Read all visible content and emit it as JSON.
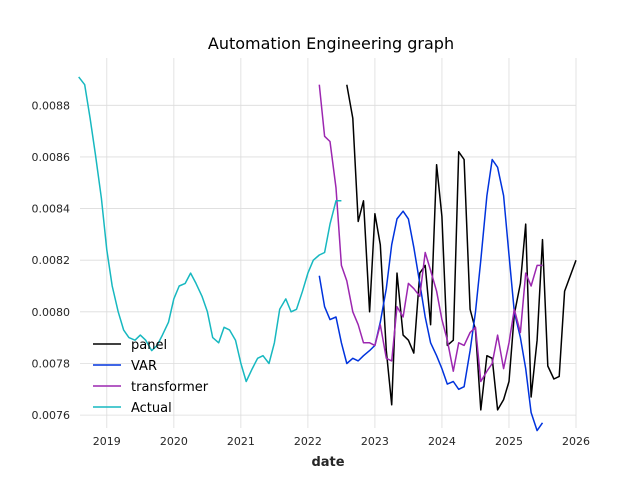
{
  "chart_data": {
    "type": "line",
    "title": "Automation Engineering graph",
    "xlabel": "date",
    "ylabel": "",
    "xlim": [
      2018.6,
      2026.0
    ],
    "ylim": [
      0.00755,
      0.0089833
    ],
    "x_ticks": [
      2019,
      2020,
      2021,
      2022,
      2023,
      2024,
      2025,
      2026
    ],
    "x_tick_labels": [
      "2019",
      "2020",
      "2021",
      "2022",
      "2023",
      "2024",
      "2025",
      "2026"
    ],
    "y_ticks": [
      0.0076,
      0.0078,
      0.008,
      0.0082,
      0.0084,
      0.0086,
      0.0088
    ],
    "y_tick_labels": [
      "0.0076",
      "0.0078",
      "0.0080",
      "0.0082",
      "0.0084",
      "0.0086",
      "0.0088"
    ],
    "grid": true,
    "legend_position": "lower-left",
    "series": [
      {
        "name": "panel",
        "color": "#000000",
        "points": [
          [
            2022.58,
            0.00888
          ],
          [
            2022.67,
            0.00875
          ],
          [
            2022.75,
            0.00835
          ],
          [
            2022.83,
            0.00843
          ],
          [
            2022.92,
            0.008
          ],
          [
            2023.0,
            0.00838
          ],
          [
            2023.08,
            0.00826
          ],
          [
            2023.17,
            0.00785
          ],
          [
            2023.25,
            0.00764
          ],
          [
            2023.33,
            0.00815
          ],
          [
            2023.42,
            0.00791
          ],
          [
            2023.5,
            0.00789
          ],
          [
            2023.58,
            0.00784
          ],
          [
            2023.67,
            0.00815
          ],
          [
            2023.75,
            0.00818
          ],
          [
            2023.83,
            0.00795
          ],
          [
            2023.92,
            0.00857
          ],
          [
            2024.0,
            0.00837
          ],
          [
            2024.08,
            0.00787
          ],
          [
            2024.17,
            0.00789
          ],
          [
            2024.25,
            0.00862
          ],
          [
            2024.33,
            0.00859
          ],
          [
            2024.42,
            0.00801
          ],
          [
            2024.5,
            0.00793
          ],
          [
            2024.58,
            0.00762
          ],
          [
            2024.67,
            0.00783
          ],
          [
            2024.75,
            0.00782
          ],
          [
            2024.83,
            0.00762
          ],
          [
            2024.92,
            0.00766
          ],
          [
            2025.0,
            0.00773
          ],
          [
            2025.08,
            0.00799
          ],
          [
            2025.17,
            0.00811
          ],
          [
            2025.25,
            0.00834
          ],
          [
            2025.33,
            0.00767
          ],
          [
            2025.42,
            0.00789
          ],
          [
            2025.5,
            0.00828
          ],
          [
            2025.58,
            0.00779
          ],
          [
            2025.67,
            0.00774
          ],
          [
            2025.75,
            0.00775
          ],
          [
            2025.83,
            0.00808
          ],
          [
            2026.0,
            0.0082
          ]
        ]
      },
      {
        "name": "VAR",
        "color": "#0033dd",
        "points": [
          [
            2022.17,
            0.00814
          ],
          [
            2022.25,
            0.00802
          ],
          [
            2022.33,
            0.00797
          ],
          [
            2022.42,
            0.00798
          ],
          [
            2022.5,
            0.00788
          ],
          [
            2022.58,
            0.0078
          ],
          [
            2022.67,
            0.00782
          ],
          [
            2022.75,
            0.00781
          ],
          [
            2022.83,
            0.00783
          ],
          [
            2022.92,
            0.00785
          ],
          [
            2023.0,
            0.00787
          ],
          [
            2023.08,
            0.00796
          ],
          [
            2023.17,
            0.00809
          ],
          [
            2023.25,
            0.00826
          ],
          [
            2023.33,
            0.00836
          ],
          [
            2023.42,
            0.00839
          ],
          [
            2023.5,
            0.00836
          ],
          [
            2023.58,
            0.00825
          ],
          [
            2023.67,
            0.00811
          ],
          [
            2023.75,
            0.00798
          ],
          [
            2023.83,
            0.00788
          ],
          [
            2023.92,
            0.00783
          ],
          [
            2024.0,
            0.00778
          ],
          [
            2024.08,
            0.00772
          ],
          [
            2024.17,
            0.00773
          ],
          [
            2024.25,
            0.0077
          ],
          [
            2024.33,
            0.00771
          ],
          [
            2024.42,
            0.00785
          ],
          [
            2024.5,
            0.008
          ],
          [
            2024.58,
            0.0082
          ],
          [
            2024.67,
            0.00845
          ],
          [
            2024.75,
            0.00859
          ],
          [
            2024.83,
            0.00856
          ],
          [
            2024.92,
            0.00845
          ],
          [
            2025.0,
            0.00822
          ],
          [
            2025.08,
            0.008
          ],
          [
            2025.17,
            0.0079
          ],
          [
            2025.25,
            0.00778
          ],
          [
            2025.33,
            0.00761
          ],
          [
            2025.42,
            0.00754
          ],
          [
            2025.5,
            0.00757
          ]
        ]
      },
      {
        "name": "transformer",
        "color": "#9c27b0",
        "points": [
          [
            2022.17,
            0.00888
          ],
          [
            2022.25,
            0.00868
          ],
          [
            2022.33,
            0.00866
          ],
          [
            2022.42,
            0.00848
          ],
          [
            2022.5,
            0.00818
          ],
          [
            2022.58,
            0.00812
          ],
          [
            2022.67,
            0.008
          ],
          [
            2022.75,
            0.00795
          ],
          [
            2022.83,
            0.00788
          ],
          [
            2022.92,
            0.00788
          ],
          [
            2023.0,
            0.00787
          ],
          [
            2023.08,
            0.00795
          ],
          [
            2023.17,
            0.00782
          ],
          [
            2023.25,
            0.00781
          ],
          [
            2023.33,
            0.00802
          ],
          [
            2023.42,
            0.00798
          ],
          [
            2023.5,
            0.00811
          ],
          [
            2023.58,
            0.00809
          ],
          [
            2023.67,
            0.00806
          ],
          [
            2023.75,
            0.00823
          ],
          [
            2023.83,
            0.00816
          ],
          [
            2023.92,
            0.00808
          ],
          [
            2024.0,
            0.00797
          ],
          [
            2024.08,
            0.00789
          ],
          [
            2024.17,
            0.00777
          ],
          [
            2024.25,
            0.00788
          ],
          [
            2024.33,
            0.00787
          ],
          [
            2024.42,
            0.00792
          ],
          [
            2024.5,
            0.00794
          ],
          [
            2024.58,
            0.00773
          ],
          [
            2024.67,
            0.00777
          ],
          [
            2024.75,
            0.0078
          ],
          [
            2024.83,
            0.00791
          ],
          [
            2024.92,
            0.00778
          ],
          [
            2025.0,
            0.00788
          ],
          [
            2025.08,
            0.00801
          ],
          [
            2025.17,
            0.00792
          ],
          [
            2025.25,
            0.00815
          ],
          [
            2025.33,
            0.0081
          ],
          [
            2025.42,
            0.00818
          ],
          [
            2025.5,
            0.00818
          ]
        ]
      },
      {
        "name": "Actual",
        "color": "#17b8c0",
        "points": [
          [
            2018.58,
            0.00891
          ],
          [
            2018.67,
            0.00888
          ],
          [
            2018.75,
            0.00875
          ],
          [
            2018.83,
            0.00861
          ],
          [
            2018.92,
            0.00844
          ],
          [
            2019.0,
            0.00824
          ],
          [
            2019.08,
            0.0081
          ],
          [
            2019.17,
            0.008
          ],
          [
            2019.25,
            0.00793
          ],
          [
            2019.33,
            0.0079
          ],
          [
            2019.42,
            0.00789
          ],
          [
            2019.5,
            0.00791
          ],
          [
            2019.58,
            0.00789
          ],
          [
            2019.67,
            0.00785
          ],
          [
            2019.75,
            0.00787
          ],
          [
            2019.83,
            0.00791
          ],
          [
            2019.92,
            0.00796
          ],
          [
            2020.0,
            0.00805
          ],
          [
            2020.08,
            0.0081
          ],
          [
            2020.17,
            0.00811
          ],
          [
            2020.25,
            0.00815
          ],
          [
            2020.33,
            0.00811
          ],
          [
            2020.42,
            0.00806
          ],
          [
            2020.5,
            0.008
          ],
          [
            2020.58,
            0.0079
          ],
          [
            2020.67,
            0.00788
          ],
          [
            2020.75,
            0.00794
          ],
          [
            2020.83,
            0.00793
          ],
          [
            2020.92,
            0.00789
          ],
          [
            2021.0,
            0.0078
          ],
          [
            2021.08,
            0.00773
          ],
          [
            2021.17,
            0.00778
          ],
          [
            2021.25,
            0.00782
          ],
          [
            2021.33,
            0.00783
          ],
          [
            2021.42,
            0.0078
          ],
          [
            2021.5,
            0.00788
          ],
          [
            2021.58,
            0.00801
          ],
          [
            2021.67,
            0.00805
          ],
          [
            2021.75,
            0.008
          ],
          [
            2021.83,
            0.00801
          ],
          [
            2021.92,
            0.00808
          ],
          [
            2022.0,
            0.00815
          ],
          [
            2022.08,
            0.0082
          ],
          [
            2022.17,
            0.00822
          ],
          [
            2022.25,
            0.00823
          ],
          [
            2022.33,
            0.00834
          ],
          [
            2022.42,
            0.00843
          ],
          [
            2022.5,
            0.00843
          ]
        ]
      }
    ]
  }
}
